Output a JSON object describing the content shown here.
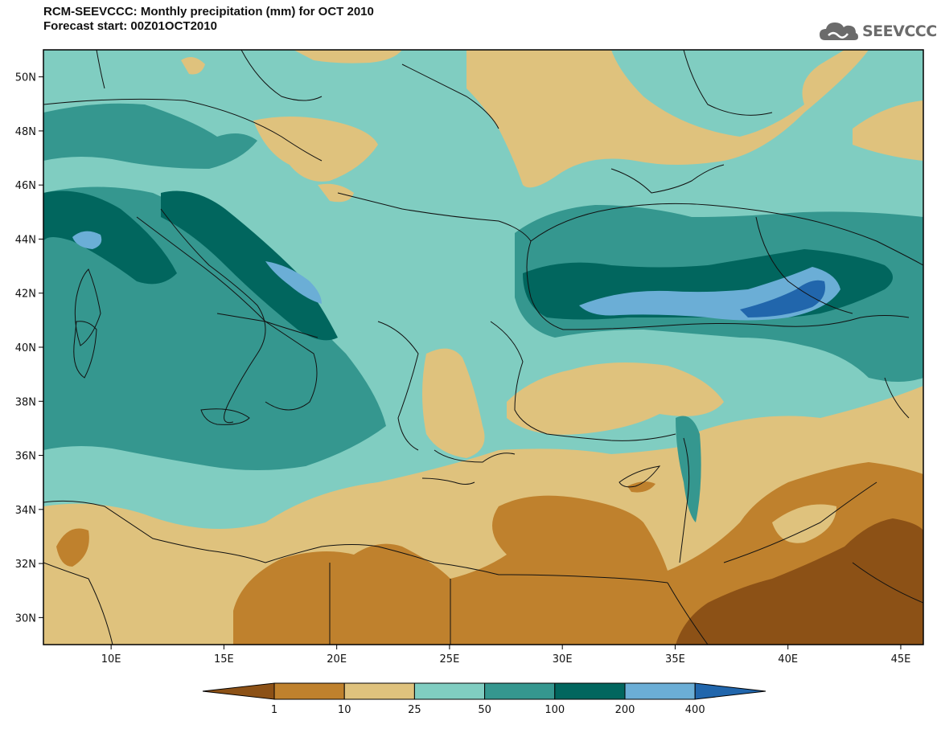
{
  "title": {
    "line1": "RCM-SEEVCCC: Monthly precipitation (mm) for OCT 2010",
    "line2": "Forecast start: 00Z01OCT2010"
  },
  "logo": {
    "text": "SEEVCCC",
    "icon": "cloud-logo-icon"
  },
  "map": {
    "lon_range": [
      7,
      46
    ],
    "lat_range": [
      29,
      51
    ],
    "lat_ticks": [
      "50N",
      "48N",
      "46N",
      "44N",
      "42N",
      "40N",
      "38N",
      "36N",
      "34N",
      "32N",
      "30N"
    ],
    "lon_ticks": [
      "10E",
      "15E",
      "20E",
      "25E",
      "30E",
      "35E",
      "40E",
      "45E"
    ]
  },
  "legend": {
    "thresholds": [
      "1",
      "10",
      "25",
      "50",
      "100",
      "200",
      "400"
    ],
    "colors": [
      "#8c5116",
      "#bf812d",
      "#dfc27d",
      "#80cdc1",
      "#35978f",
      "#01665e",
      "#6baed6",
      "#2166ac"
    ]
  }
}
